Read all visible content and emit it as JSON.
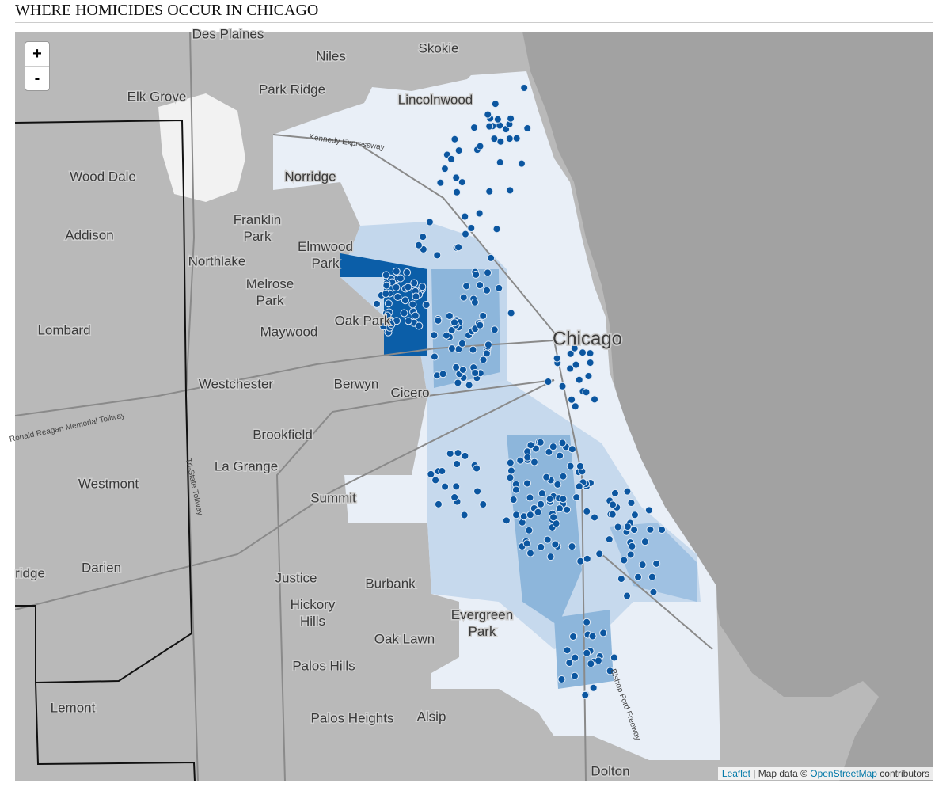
{
  "header": {
    "title": "WHERE HOMICIDES OCCUR IN CHICAGO"
  },
  "map": {
    "zoom_in": "+",
    "zoom_out": "-",
    "places": [
      "Des Plaines",
      "Niles",
      "Skokie",
      "Park Ridge",
      "Elk Grove",
      "Lincolnwood",
      "Norridge",
      "Wood Dale",
      [
        "Franklin",
        "Park"
      ],
      "Addison",
      "Northlake",
      [
        "Elmwood",
        "Park"
      ],
      [
        "Melrose",
        "Park"
      ],
      "Oak Park",
      "Maywood",
      "Lombard",
      "Chicago",
      "Westchester",
      "Berwyn",
      "Cicero",
      "Brookfield",
      "La Grange",
      "Westmont",
      "Summit",
      "Darien",
      "ridge",
      "Justice",
      "Burbank",
      [
        "Hickory",
        "Hills"
      ],
      [
        "Evergreen",
        "Park"
      ],
      "Oak Lawn",
      "Palos Hills",
      "Lemont",
      "Palos Heights",
      "Alsip",
      "Dolton"
    ],
    "roads": [
      "Kennedy Expressway",
      "Ronald Reagan Memorial Tollway",
      "Tri-State Tollway",
      "Bishop Ford Freeway"
    ],
    "attribution": {
      "link1": "Leaflet",
      "middle": " | Map data © ",
      "link2": "OpenStreetMap",
      "end": " contributors"
    }
  }
}
